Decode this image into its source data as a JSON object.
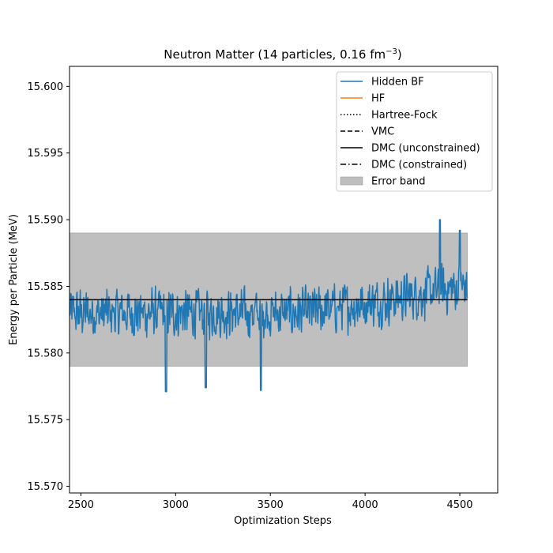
{
  "chart_data": {
    "type": "line",
    "title": "Neutron Matter (14 particles, 0.16 fm",
    "title_sup": "−3",
    "title_end": ")",
    "xlabel": "Optimization Steps",
    "ylabel": "Energy per Particle (MeV)",
    "xlim": [
      2440,
      4700
    ],
    "ylim": [
      15.5695,
      15.6015
    ],
    "xticks": [
      2500,
      3000,
      3500,
      4000,
      4500
    ],
    "xtick_labels": [
      "2500",
      "3000",
      "3500",
      "4000",
      "4500"
    ],
    "yticks": [
      15.57,
      15.575,
      15.58,
      15.585,
      15.59,
      15.595,
      15.6
    ],
    "ytick_labels": [
      "15.570",
      "15.575",
      "15.580",
      "15.585",
      "15.590",
      "15.595",
      "15.600"
    ],
    "grid": false,
    "legend_position": "top-right",
    "series": [
      {
        "name": "Hidden BF",
        "color": "#1f77b4",
        "style": "solid",
        "x_start": 2440,
        "x_end": 4540,
        "baseline": 15.583,
        "trend_end": 15.585,
        "amplitude": 0.0022,
        "y_min": 15.577,
        "y_max": 15.59,
        "extremes": [
          {
            "x": 2950,
            "y": 15.5771
          },
          {
            "x": 3160,
            "y": 15.5774
          },
          {
            "x": 3450,
            "y": 15.5772
          },
          {
            "x": 4395,
            "y": 15.59
          },
          {
            "x": 4500,
            "y": 15.5892
          }
        ]
      },
      {
        "name": "HF",
        "color": "#ff7f0e",
        "style": "solid"
      },
      {
        "name": "Hartree-Fock",
        "color": "#000000",
        "style": "dotted"
      },
      {
        "name": "VMC",
        "color": "#000000",
        "style": "dashed"
      },
      {
        "name": "DMC (unconstrained)",
        "color": "#000000",
        "style": "solid",
        "x": [
          2440,
          4540
        ],
        "y": [
          15.584,
          15.584
        ]
      },
      {
        "name": "DMC (constrained)",
        "color": "#000000",
        "style": "dashdot"
      },
      {
        "name": "Error band",
        "color": "#bfbfbf",
        "style": "fill",
        "x": [
          2440,
          4540
        ],
        "y_low": 15.579,
        "y_high": 15.589
      }
    ]
  }
}
